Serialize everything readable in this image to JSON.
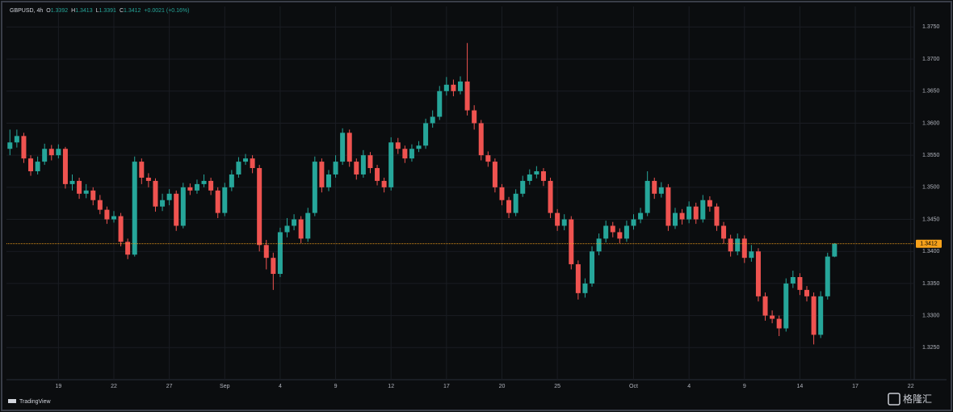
{
  "chart_data": {
    "type": "candlestick",
    "header": {
      "symbol": "GBPUSD, 4h",
      "fields": [
        {
          "label": "O",
          "value": 1.3392
        },
        {
          "label": "H",
          "value": 1.3413
        },
        {
          "label": "L",
          "value": 1.3391
        },
        {
          "label": "C",
          "value": 1.3412
        }
      ],
      "change": "+0.0021 (+0.16%)"
    },
    "categories": [
      null,
      null,
      null,
      null,
      null,
      null,
      null,
      "19",
      null,
      null,
      null,
      null,
      null,
      null,
      null,
      "22",
      null,
      null,
      null,
      null,
      null,
      null,
      null,
      "27",
      null,
      null,
      null,
      null,
      null,
      null,
      null,
      "Sep",
      null,
      null,
      null,
      null,
      null,
      null,
      null,
      "4",
      null,
      null,
      null,
      null,
      null,
      null,
      null,
      "9",
      null,
      null,
      null,
      null,
      null,
      null,
      null,
      "12",
      null,
      null,
      null,
      null,
      null,
      null,
      null,
      "17",
      null,
      null,
      null,
      null,
      null,
      null,
      null,
      "20",
      null,
      null,
      null,
      null,
      null,
      null,
      null,
      "25",
      null,
      null,
      null,
      null,
      null,
      null,
      null,
      null,
      null,
      null,
      "Oct",
      null,
      null,
      null,
      null,
      null,
      null,
      null,
      "4",
      null,
      null,
      null,
      null,
      null,
      null,
      null,
      "9",
      null,
      null,
      null,
      null,
      null,
      null,
      null,
      "14",
      null,
      null,
      null,
      null,
      null,
      null,
      null,
      "17",
      null,
      null,
      null,
      null,
      null,
      null,
      null,
      "22"
    ],
    "open": [
      1.356,
      1.357,
      1.358,
      1.3545,
      1.3525,
      1.354,
      1.356,
      1.355,
      1.356,
      1.3505,
      1.351,
      1.349,
      1.3495,
      1.348,
      1.3465,
      1.345,
      1.3455,
      1.3415,
      1.3395,
      1.354,
      1.3515,
      1.351,
      1.347,
      1.348,
      1.349,
      1.344,
      1.35,
      1.3495,
      1.3505,
      1.351,
      1.3495,
      1.346,
      1.35,
      1.352,
      1.354,
      1.3545,
      1.353,
      1.341,
      1.339,
      1.3365,
      1.343,
      1.344,
      1.345,
      1.342,
      1.346,
      1.354,
      1.35,
      1.352,
      1.354,
      1.3585,
      1.354,
      1.352,
      1.355,
      1.353,
      1.351,
      1.35,
      1.357,
      1.356,
      1.3545,
      1.356,
      1.3565,
      1.36,
      1.361,
      1.365,
      1.366,
      1.365,
      1.3665,
      1.362,
      1.36,
      1.355,
      1.354,
      1.35,
      1.348,
      1.346,
      1.349,
      1.351,
      1.352,
      1.3525,
      1.351,
      1.346,
      1.344,
      1.345,
      1.338,
      1.3335,
      1.335,
      1.34,
      1.342,
      1.344,
      1.343,
      1.342,
      1.344,
      1.345,
      1.346,
      1.351,
      1.349,
      1.35,
      1.344,
      1.346,
      1.345,
      1.347,
      1.345,
      1.348,
      1.347,
      1.344,
      1.342,
      1.34,
      1.342,
      1.339,
      1.34,
      1.333,
      1.33,
      1.3295,
      1.328,
      1.335,
      1.336,
      1.334,
      1.333,
      1.327,
      1.333,
      1.3392,
      null,
      null,
      null,
      null,
      null,
      null,
      null,
      null,
      null,
      null,
      null
    ],
    "high": [
      1.359,
      1.359,
      1.3585,
      1.355,
      1.3548,
      1.3568,
      1.3566,
      1.3567,
      1.3563,
      1.352,
      1.3515,
      1.3505,
      1.35,
      1.3488,
      1.347,
      1.3463,
      1.346,
      1.342,
      1.3548,
      1.3545,
      1.3522,
      1.3514,
      1.349,
      1.3497,
      1.3495,
      1.3507,
      1.3506,
      1.3512,
      1.352,
      1.3515,
      1.35,
      1.3507,
      1.3527,
      1.3547,
      1.3552,
      1.355,
      1.3535,
      1.3418,
      1.3398,
      1.3437,
      1.3452,
      1.3458,
      1.3455,
      1.3468,
      1.3548,
      1.3545,
      1.3527,
      1.355,
      1.3592,
      1.359,
      1.3545,
      1.3558,
      1.3555,
      1.3535,
      1.3515,
      1.3578,
      1.3577,
      1.3565,
      1.3567,
      1.3572,
      1.3607,
      1.362,
      1.3658,
      1.3672,
      1.3668,
      1.3673,
      1.3725,
      1.3628,
      1.3605,
      1.3556,
      1.3545,
      1.3505,
      1.3485,
      1.3497,
      1.3518,
      1.3528,
      1.3533,
      1.353,
      1.3515,
      1.3466,
      1.3458,
      1.3455,
      1.3386,
      1.3358,
      1.3408,
      1.3428,
      1.3448,
      1.3446,
      1.3436,
      1.3448,
      1.3458,
      1.3468,
      1.3525,
      1.3515,
      1.3508,
      1.3505,
      1.3468,
      1.3466,
      1.3478,
      1.3476,
      1.3488,
      1.3486,
      1.3475,
      1.3446,
      1.3426,
      1.3428,
      1.3425,
      1.341,
      1.3405,
      1.3336,
      1.3308,
      1.33,
      1.3358,
      1.337,
      1.3366,
      1.3346,
      1.3336,
      1.3338,
      1.3398,
      1.3413,
      null,
      null,
      null,
      null,
      null,
      null,
      null,
      null,
      null,
      null,
      null
    ],
    "low": [
      1.355,
      1.3562,
      1.3538,
      1.3518,
      1.352,
      1.3535,
      1.3542,
      1.3545,
      1.3498,
      1.3495,
      1.3482,
      1.3483,
      1.3472,
      1.3458,
      1.3443,
      1.3445,
      1.3408,
      1.3388,
      1.3392,
      1.3505,
      1.35,
      1.3462,
      1.3463,
      1.3472,
      1.3432,
      1.3436,
      1.3488,
      1.349,
      1.35,
      1.3488,
      1.3452,
      1.3455,
      1.3494,
      1.3515,
      1.3535,
      1.3522,
      1.34,
      1.3372,
      1.334,
      1.336,
      1.3422,
      1.3433,
      1.3413,
      1.3415,
      1.3455,
      1.3492,
      1.3494,
      1.3515,
      1.3535,
      1.3532,
      1.3512,
      1.3515,
      1.3522,
      1.3503,
      1.3492,
      1.3495,
      1.3552,
      1.3538,
      1.354,
      1.3555,
      1.356,
      1.3593,
      1.3605,
      1.3643,
      1.3642,
      1.3645,
      1.3612,
      1.359,
      1.3542,
      1.3532,
      1.3492,
      1.3472,
      1.3452,
      1.3455,
      1.3485,
      1.3504,
      1.3514,
      1.3502,
      1.3452,
      1.3432,
      1.3433,
      1.3372,
      1.3325,
      1.3328,
      1.3345,
      1.3394,
      1.3414,
      1.3422,
      1.3413,
      1.3415,
      1.3434,
      1.3444,
      1.3455,
      1.3482,
      1.3484,
      1.3432,
      1.3435,
      1.3442,
      1.3444,
      1.3443,
      1.3445,
      1.3462,
      1.3432,
      1.3412,
      1.3392,
      1.3394,
      1.3382,
      1.3384,
      1.3322,
      1.3292,
      1.3288,
      1.3268,
      1.3275,
      1.3343,
      1.3332,
      1.3322,
      1.3255,
      1.3265,
      1.3325,
      1.3391,
      null,
      null,
      null,
      null,
      null,
      null,
      null,
      null,
      null,
      null,
      null
    ],
    "close": [
      1.357,
      1.358,
      1.3545,
      1.3525,
      1.354,
      1.356,
      1.355,
      1.356,
      1.3505,
      1.351,
      1.349,
      1.3495,
      1.348,
      1.3465,
      1.345,
      1.3455,
      1.3415,
      1.3395,
      1.354,
      1.3515,
      1.351,
      1.347,
      1.348,
      1.349,
      1.344,
      1.35,
      1.3495,
      1.3505,
      1.351,
      1.3495,
      1.346,
      1.35,
      1.352,
      1.354,
      1.3545,
      1.353,
      1.341,
      1.339,
      1.3365,
      1.343,
      1.344,
      1.345,
      1.342,
      1.346,
      1.354,
      1.35,
      1.352,
      1.354,
      1.3585,
      1.354,
      1.352,
      1.355,
      1.353,
      1.351,
      1.35,
      1.357,
      1.356,
      1.3545,
      1.356,
      1.3565,
      1.36,
      1.361,
      1.365,
      1.366,
      1.365,
      1.3665,
      1.362,
      1.36,
      1.355,
      1.354,
      1.35,
      1.348,
      1.346,
      1.349,
      1.351,
      1.352,
      1.3525,
      1.351,
      1.346,
      1.344,
      1.345,
      1.338,
      1.3335,
      1.335,
      1.34,
      1.342,
      1.344,
      1.343,
      1.342,
      1.344,
      1.345,
      1.346,
      1.351,
      1.349,
      1.35,
      1.344,
      1.346,
      1.345,
      1.347,
      1.345,
      1.348,
      1.347,
      1.344,
      1.342,
      1.34,
      1.342,
      1.339,
      1.34,
      1.333,
      1.33,
      1.3295,
      1.328,
      1.335,
      1.336,
      1.334,
      1.333,
      1.327,
      1.333,
      1.3392,
      1.3412,
      null,
      null,
      null,
      null,
      null,
      null,
      null,
      null,
      null,
      null,
      null
    ],
    "up_color": "#26a69a",
    "down_color": "#ef5350",
    "ylim": [
      1.32,
      1.3782
    ],
    "yticks": [
      {
        "value": 1.325,
        "label": "1.3250"
      },
      {
        "value": 1.33,
        "label": "1.3300"
      },
      {
        "value": 1.335,
        "label": "1.3350"
      },
      {
        "value": 1.34,
        "label": "1.3400"
      },
      {
        "value": 1.345,
        "label": "1.3450"
      },
      {
        "value": 1.35,
        "label": "1.3500"
      },
      {
        "value": 1.355,
        "label": "1.3550"
      },
      {
        "value": 1.36,
        "label": "1.3600"
      },
      {
        "value": 1.365,
        "label": "1.3650"
      },
      {
        "value": 1.37,
        "label": "1.3700"
      },
      {
        "value": 1.375,
        "label": "1.3750"
      }
    ],
    "grid": true,
    "last_price": 1.3412,
    "last_price_color": "#f7a21b",
    "branding": "TradingView",
    "watermark": "格隆汇"
  }
}
